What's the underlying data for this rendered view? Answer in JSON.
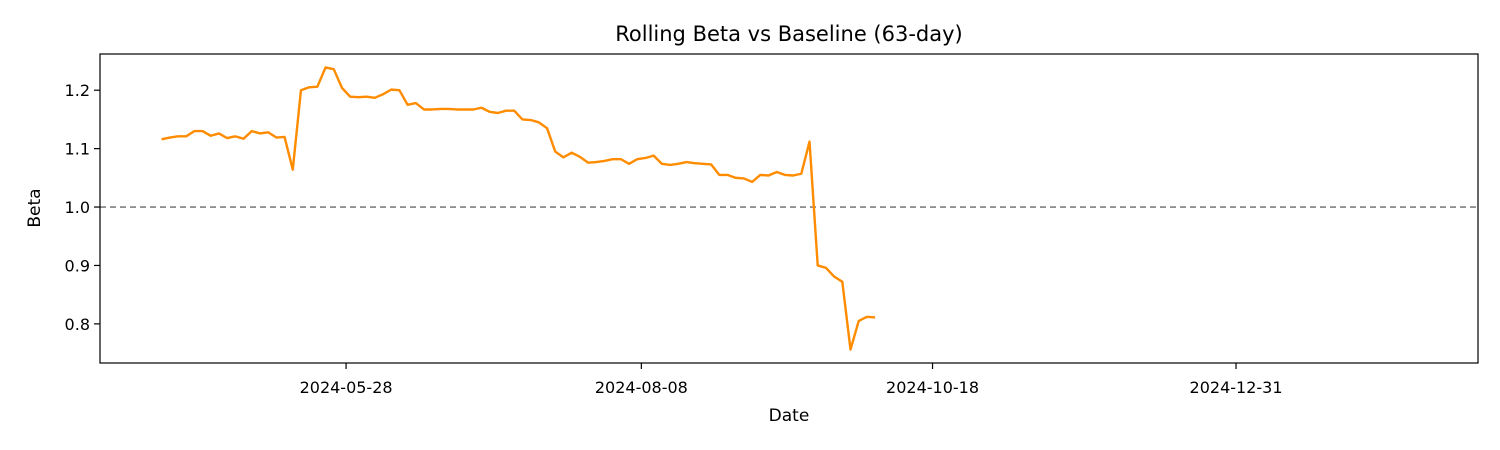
{
  "chart_data": {
    "type": "line",
    "title": "Rolling Beta vs Baseline (63-day)",
    "xlabel": "Date",
    "ylabel": "Beta",
    "x_ticks": [
      "2024-05-28",
      "2024-08-08",
      "2024-10-18",
      "2024-12-31"
    ],
    "y_ticks": [
      "0.8",
      "0.9",
      "1.0",
      "1.1",
      "1.2"
    ],
    "ylim": [
      0.733,
      1.262
    ],
    "xlim": [
      "2024-03-29",
      "2025-02-28"
    ],
    "grid": false,
    "baseline": {
      "value": 1.0,
      "style": "dashed",
      "color": "#808080"
    },
    "series": [
      {
        "color": "#ff8c00",
        "points": [
          [
            "2024-04-13",
            1.116
          ],
          [
            "2024-04-15",
            1.119
          ],
          [
            "2024-04-17",
            1.121
          ],
          [
            "2024-04-19",
            1.121
          ],
          [
            "2024-04-21",
            1.13
          ],
          [
            "2024-04-23",
            1.13
          ],
          [
            "2024-04-25",
            1.122
          ],
          [
            "2024-04-27",
            1.126
          ],
          [
            "2024-04-29",
            1.118
          ],
          [
            "2024-05-01",
            1.121
          ],
          [
            "2024-05-03",
            1.117
          ],
          [
            "2024-05-05",
            1.13
          ],
          [
            "2024-05-07",
            1.126
          ],
          [
            "2024-05-09",
            1.128
          ],
          [
            "2024-05-11",
            1.119
          ],
          [
            "2024-05-13",
            1.12
          ],
          [
            "2024-05-15",
            1.064
          ],
          [
            "2024-05-17",
            1.2
          ],
          [
            "2024-05-19",
            1.205
          ],
          [
            "2024-05-21",
            1.206
          ],
          [
            "2024-05-23",
            1.239
          ],
          [
            "2024-05-25",
            1.236
          ],
          [
            "2024-05-27",
            1.204
          ],
          [
            "2024-05-29",
            1.189
          ],
          [
            "2024-05-31",
            1.188
          ],
          [
            "2024-06-02",
            1.189
          ],
          [
            "2024-06-04",
            1.187
          ],
          [
            "2024-06-06",
            1.193
          ],
          [
            "2024-06-08",
            1.201
          ],
          [
            "2024-06-10",
            1.2
          ],
          [
            "2024-06-12",
            1.175
          ],
          [
            "2024-06-14",
            1.178
          ],
          [
            "2024-06-16",
            1.167
          ],
          [
            "2024-06-18",
            1.167
          ],
          [
            "2024-06-20",
            1.168
          ],
          [
            "2024-06-22",
            1.168
          ],
          [
            "2024-06-24",
            1.167
          ],
          [
            "2024-06-26",
            1.167
          ],
          [
            "2024-06-28",
            1.167
          ],
          [
            "2024-06-30",
            1.17
          ],
          [
            "2024-07-02",
            1.163
          ],
          [
            "2024-07-04",
            1.161
          ],
          [
            "2024-07-06",
            1.165
          ],
          [
            "2024-07-08",
            1.165
          ],
          [
            "2024-07-10",
            1.15
          ],
          [
            "2024-07-12",
            1.149
          ],
          [
            "2024-07-14",
            1.145
          ],
          [
            "2024-07-16",
            1.135
          ],
          [
            "2024-07-18",
            1.095
          ],
          [
            "2024-07-20",
            1.085
          ],
          [
            "2024-07-22",
            1.093
          ],
          [
            "2024-07-24",
            1.086
          ],
          [
            "2024-07-26",
            1.076
          ],
          [
            "2024-07-28",
            1.077
          ],
          [
            "2024-07-30",
            1.079
          ],
          [
            "2024-08-01",
            1.082
          ],
          [
            "2024-08-03",
            1.082
          ],
          [
            "2024-08-05",
            1.074
          ],
          [
            "2024-08-07",
            1.082
          ],
          [
            "2024-08-09",
            1.084
          ],
          [
            "2024-08-11",
            1.088
          ],
          [
            "2024-08-13",
            1.074
          ],
          [
            "2024-08-15",
            1.072
          ],
          [
            "2024-08-17",
            1.074
          ],
          [
            "2024-08-19",
            1.077
          ],
          [
            "2024-08-21",
            1.075
          ],
          [
            "2024-08-23",
            1.074
          ],
          [
            "2024-08-25",
            1.073
          ],
          [
            "2024-08-27",
            1.055
          ],
          [
            "2024-08-29",
            1.055
          ],
          [
            "2024-08-31",
            1.05
          ],
          [
            "2024-09-02",
            1.049
          ],
          [
            "2024-09-04",
            1.043
          ],
          [
            "2024-09-06",
            1.055
          ],
          [
            "2024-09-08",
            1.054
          ],
          [
            "2024-09-10",
            1.06
          ],
          [
            "2024-09-12",
            1.055
          ],
          [
            "2024-09-14",
            1.054
          ],
          [
            "2024-09-16",
            1.057
          ],
          [
            "2024-09-18",
            1.112
          ],
          [
            "2024-09-20",
            0.9
          ],
          [
            "2024-09-22",
            0.896
          ],
          [
            "2024-09-24",
            0.881
          ],
          [
            "2024-09-26",
            0.872
          ],
          [
            "2024-09-28",
            0.756
          ],
          [
            "2024-09-30",
            0.805
          ],
          [
            "2024-10-02",
            0.812
          ],
          [
            "2024-10-04",
            0.811
          ]
        ]
      }
    ]
  }
}
